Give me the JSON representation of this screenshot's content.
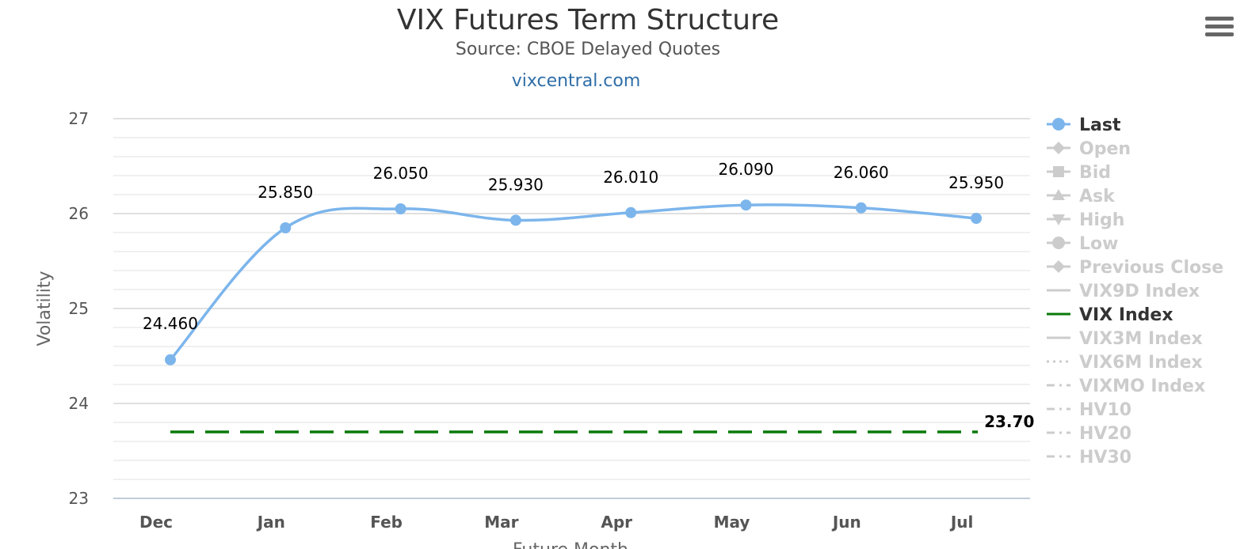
{
  "chart_data": {
    "type": "line",
    "title": "VIX Futures Term Structure",
    "subtitle": "Source: CBOE Delayed Quotes",
    "credit": "vixcentral.com",
    "xlabel": "Future Month",
    "ylabel": "Volatility",
    "ylim": [
      23,
      27
    ],
    "yticks": [
      "23",
      "24",
      "25",
      "26",
      "27"
    ],
    "categories": [
      "Dec",
      "Jan",
      "Feb",
      "Mar",
      "Apr",
      "May",
      "Jun",
      "Jul"
    ],
    "grid": true,
    "legend_position": "right",
    "series": [
      {
        "name": "Last",
        "color": "#7cb5ec",
        "values": [
          24.46,
          25.85,
          26.05,
          25.93,
          26.01,
          26.09,
          26.06,
          25.95
        ],
        "labels": [
          "24.460",
          "25.850",
          "26.050",
          "25.930",
          "26.010",
          "26.090",
          "26.060",
          "25.950"
        ]
      },
      {
        "name": "VIX Index",
        "color": "#0a7a0a",
        "style": "dashed",
        "value": 23.7,
        "label": "23.70"
      }
    ],
    "legend": [
      {
        "name": "Last",
        "symbol": "circle",
        "active": true,
        "color": "#7cb5ec"
      },
      {
        "name": "Open",
        "symbol": "diamond",
        "active": false
      },
      {
        "name": "Bid",
        "symbol": "square",
        "active": false
      },
      {
        "name": "Ask",
        "symbol": "triangle",
        "active": false
      },
      {
        "name": "High",
        "symbol": "triangle-down",
        "active": false
      },
      {
        "name": "Low",
        "symbol": "circle",
        "active": false
      },
      {
        "name": "Previous Close",
        "symbol": "diamond",
        "active": false
      },
      {
        "name": "VIX9D Index",
        "symbol": "solid",
        "active": false
      },
      {
        "name": "VIX Index",
        "symbol": "solid",
        "active": true,
        "color": "#0a7a0a"
      },
      {
        "name": "VIX3M Index",
        "symbol": "solid",
        "active": false
      },
      {
        "name": "VIX6M Index",
        "symbol": "dotted",
        "active": false
      },
      {
        "name": "VIXMO Index",
        "symbol": "dashdot",
        "active": false
      },
      {
        "name": "HV10",
        "symbol": "dashdot",
        "active": false
      },
      {
        "name": "HV20",
        "symbol": "dashdot",
        "active": false
      },
      {
        "name": "HV30",
        "symbol": "dashdot",
        "active": false
      }
    ],
    "inactive_color": "#cccccc",
    "active_text_color": "#333333"
  },
  "menu": {
    "icon": "hamburger-menu-icon"
  }
}
